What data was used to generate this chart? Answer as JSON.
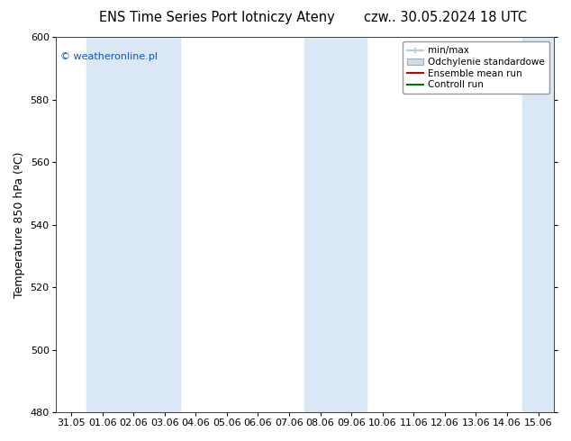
{
  "title_left": "ENS Time Series Port lotniczy Ateny",
  "title_right": "czw.. 30.05.2024 18 UTC",
  "ylabel": "Temperature 850 hPa (ºC)",
  "ylim": [
    480,
    600
  ],
  "yticks": [
    480,
    500,
    520,
    540,
    560,
    580,
    600
  ],
  "xlabels": [
    "31.05",
    "01.06",
    "02.06",
    "03.06",
    "04.06",
    "05.06",
    "06.06",
    "07.06",
    "08.06",
    "09.06",
    "10.06",
    "11.06",
    "12.06",
    "13.06",
    "14.06",
    "15.06"
  ],
  "shaded_indices": [
    1,
    2,
    3,
    8,
    9,
    15
  ],
  "shaded_color": "#dae8f5",
  "watermark": "© weatheronline.pl",
  "watermark_color": "#1155bb",
  "bg_color": "#ffffff",
  "legend_items": [
    {
      "label": "min/max",
      "color": "#b8cfe0",
      "type": "errorbar"
    },
    {
      "label": "Odchylenie standardowe",
      "color": "#ccdff0",
      "type": "box"
    },
    {
      "label": "Ensemble mean run",
      "color": "#cc0000",
      "type": "line"
    },
    {
      "label": "Controll run",
      "color": "#007700",
      "type": "line"
    }
  ],
  "title_fontsize": 10.5,
  "tick_fontsize": 8,
  "ylabel_fontsize": 9,
  "watermark_fontsize": 8
}
